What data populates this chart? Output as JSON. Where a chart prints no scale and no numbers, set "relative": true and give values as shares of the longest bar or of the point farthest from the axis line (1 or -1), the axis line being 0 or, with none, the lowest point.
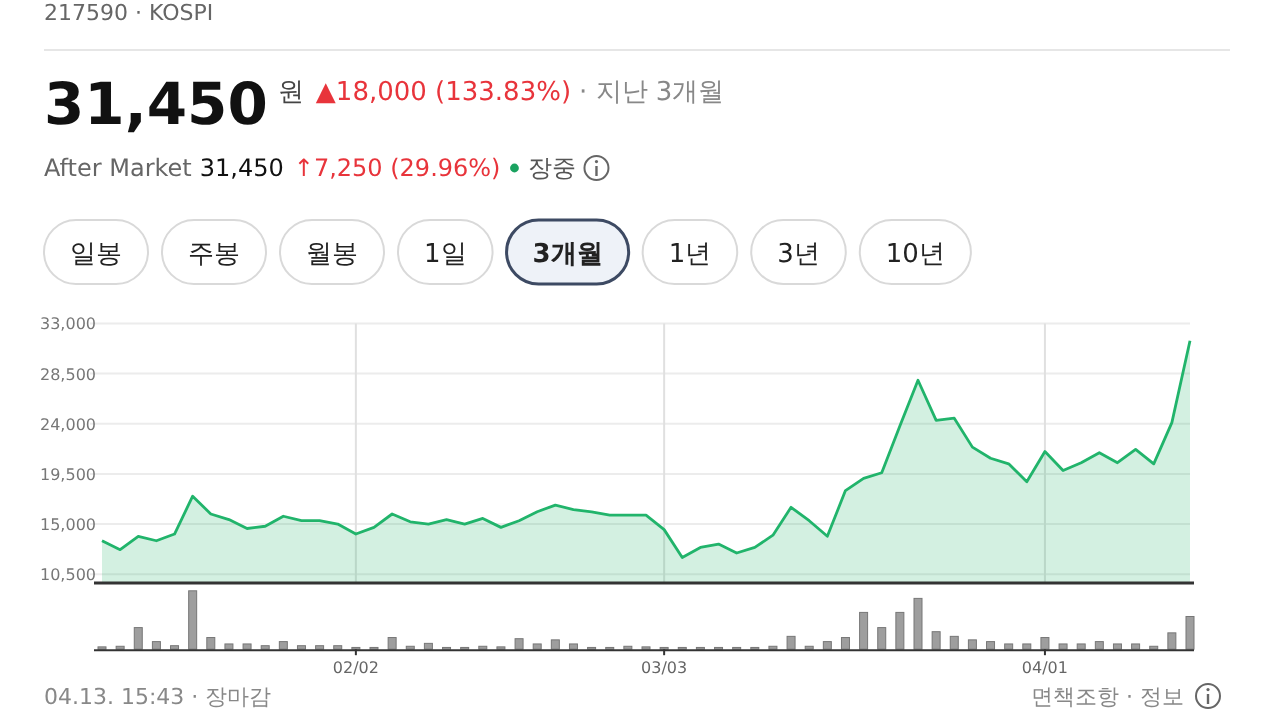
{
  "chart_data": [
    {
      "type": "area",
      "color": "#21b46b",
      "categories": [
        null,
        null,
        null,
        null,
        null,
        null,
        null,
        null,
        null,
        null,
        null,
        null,
        null,
        null,
        null,
        null,
        null,
        null,
        null,
        null,
        null,
        null,
        null,
        null,
        null,
        null,
        null,
        null,
        null,
        null,
        null,
        null,
        null,
        null,
        null,
        null,
        null,
        null,
        null,
        null,
        null,
        null,
        null,
        null,
        null,
        null,
        null,
        null,
        null,
        null,
        null,
        null,
        null,
        null,
        null,
        null,
        null,
        null,
        null,
        null,
        null
      ],
      "values": [
        13500,
        12700,
        13900,
        13500,
        14100,
        17500,
        15900,
        15400,
        14600,
        14800,
        15700,
        15300,
        15300,
        15000,
        14100,
        14700,
        15900,
        15200,
        15000,
        15400,
        15000,
        15500,
        14700,
        15300,
        16100,
        16700,
        16300,
        16100,
        15800,
        15800,
        15800,
        14500,
        12000,
        12900,
        13200,
        12400,
        12900,
        14000,
        16500,
        15300,
        13900,
        18000,
        19100,
        19600,
        23800,
        27900,
        24300,
        24500,
        21900,
        20900,
        20400,
        18800,
        21500,
        19800,
        20500,
        21400,
        20500,
        21700,
        20400,
        24100,
        31450
      ],
      "ylim": [
        9800,
        33000
      ],
      "yticks": [
        {
          "value": 10500,
          "label": "10,500"
        },
        {
          "value": 15000,
          "label": "15,000"
        },
        {
          "value": 19500,
          "label": "19,500"
        },
        {
          "value": 24000,
          "label": "24,000"
        },
        {
          "value": 28500,
          "label": "28,500"
        },
        {
          "value": 33000,
          "label": "33,000"
        }
      ],
      "grid": true,
      "tick_labels": "y",
      "annotations": [
        "217590 · KOSPI",
        "31,450",
        "원",
        "▲18,000 (133.83%)",
        "· 지난 3개월",
        "After Market",
        "31,450",
        "↑7,250 (29.96%)",
        "장중",
        "일봉",
        "주봉",
        "월봉",
        "1일",
        "3개월",
        "1년",
        "3년",
        "10년",
        "04.13. 15:43 · 장마감",
        "면책조항 · 정보"
      ]
    },
    {
      "type": "bar",
      "color": "#9e9e9e",
      "relative": true,
      "tick_labels": "x",
      "categories": [
        null,
        null,
        null,
        null,
        null,
        null,
        null,
        null,
        null,
        null,
        null,
        null,
        null,
        null,
        "02/02",
        null,
        null,
        null,
        null,
        null,
        null,
        null,
        null,
        null,
        null,
        null,
        null,
        null,
        null,
        null,
        null,
        "03/03",
        null,
        null,
        null,
        null,
        null,
        null,
        null,
        null,
        null,
        null,
        null,
        null,
        null,
        null,
        null,
        null,
        null,
        null,
        null,
        null,
        "04/01",
        null,
        null,
        null,
        null,
        null,
        null,
        null,
        null
      ],
      "values": [
        0.04,
        0.05,
        0.37,
        0.13,
        0.06,
        1,
        0.2,
        0.09,
        0.09,
        0.06,
        0.13,
        0.06,
        0.06,
        0.06,
        0.03,
        0.03,
        0.2,
        0.05,
        0.1,
        0.03,
        0.03,
        0.05,
        0.04,
        0.18,
        0.09,
        0.16,
        0.09,
        0.03,
        0.03,
        0.05,
        0.04,
        0.03,
        0.03,
        0.03,
        0.03,
        0.03,
        0.03,
        0.05,
        0.22,
        0.05,
        0.13,
        0.2,
        0.63,
        0.37,
        0.63,
        0.87,
        0.3,
        0.22,
        0.16,
        0.13,
        0.09,
        0.09,
        0.2,
        0.09,
        0.09,
        0.13,
        0.09,
        0.09,
        0.05,
        0.28,
        0.56
      ]
    }
  ]
}
